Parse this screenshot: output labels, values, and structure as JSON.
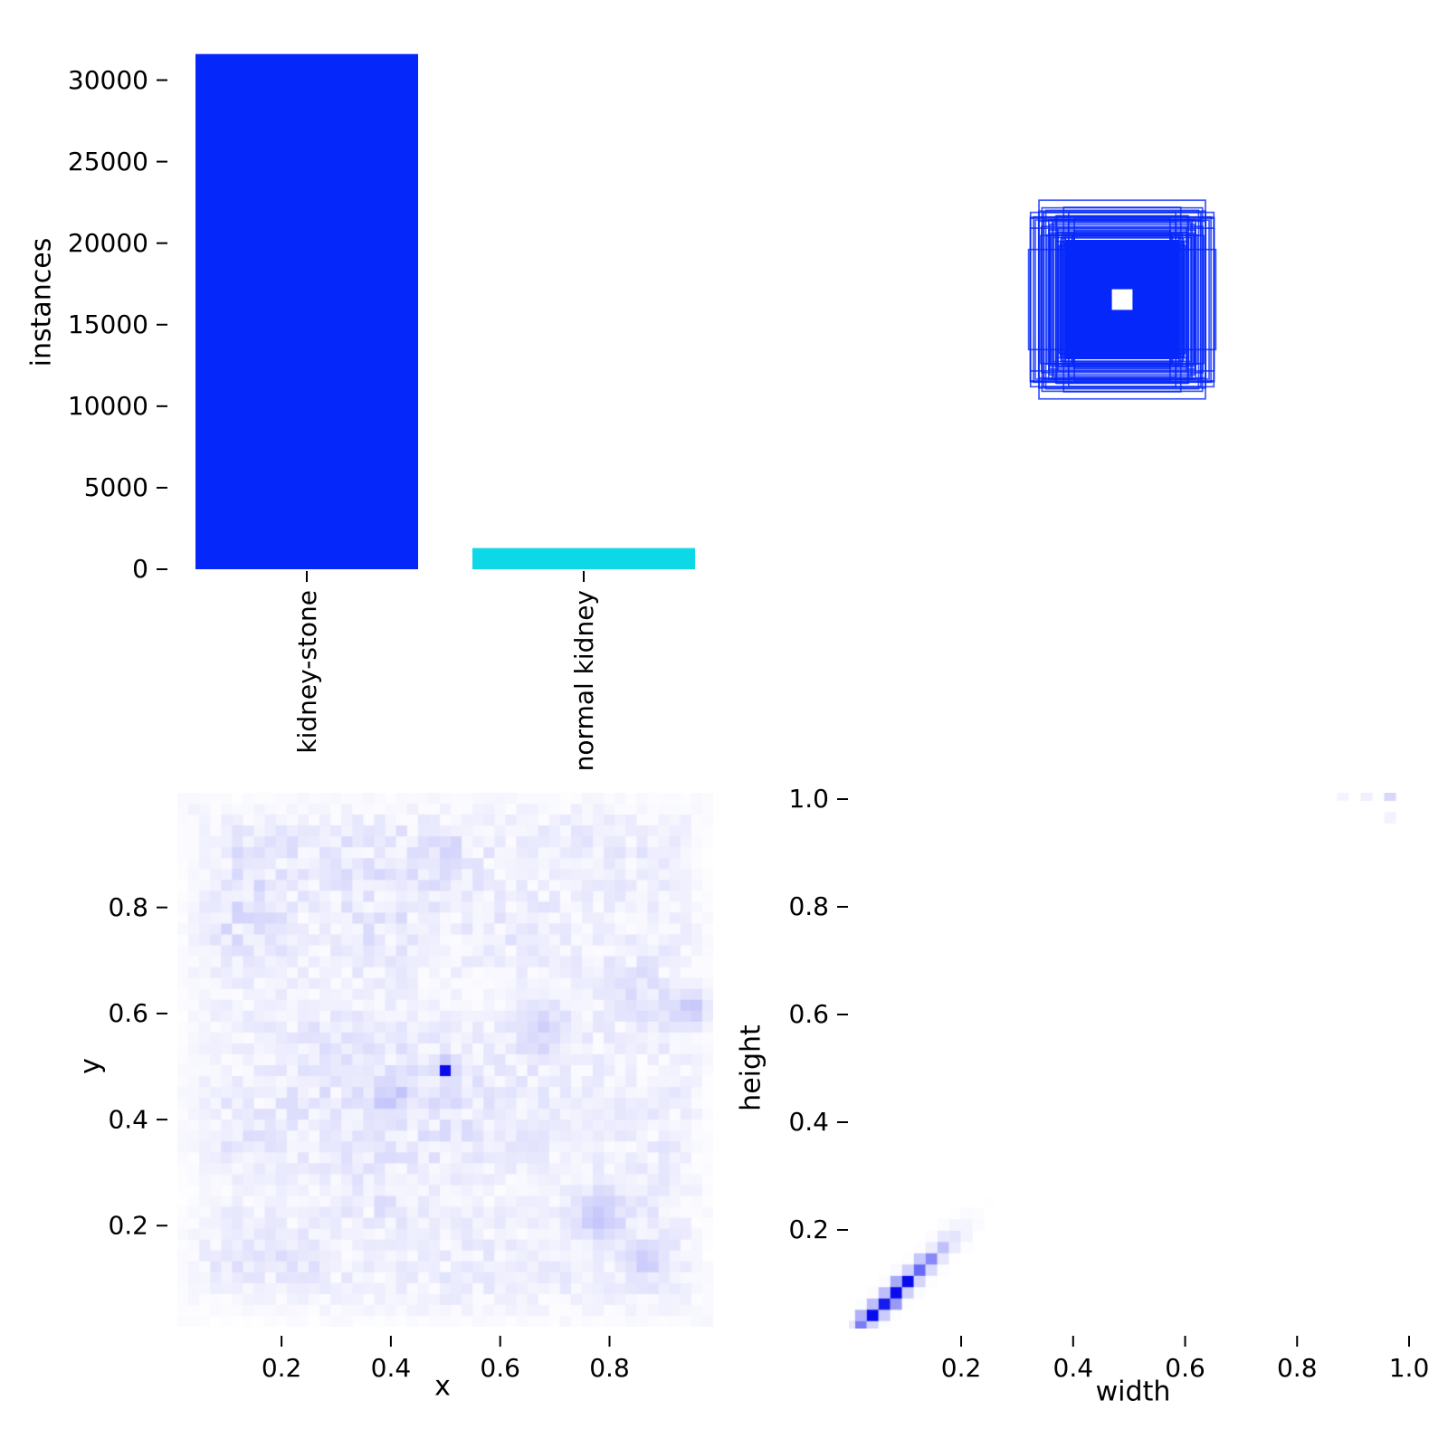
{
  "figure": {
    "background": "#ffffff",
    "text_color": "#000000",
    "title": ""
  },
  "chart_data": [
    {
      "id": "class_instances",
      "type": "bar",
      "title": "",
      "xlabel": "",
      "ylabel": "instances",
      "categories": [
        "kidney-stone",
        "normal kidney"
      ],
      "values": [
        31600,
        1300
      ],
      "bar_colors": [
        "#0527fa",
        "#0dd8e6"
      ],
      "yticks": [
        0,
        5000,
        10000,
        15000,
        20000,
        25000,
        30000
      ],
      "ylim": [
        0,
        33200
      ],
      "xtick_rotation": 90,
      "grid": false,
      "legend": "none"
    },
    {
      "id": "bbox_overlay",
      "type": "boxes",
      "description": "all dataset bounding boxes overlaid, centered at (0.5, 0.5)",
      "center_x": 0.5,
      "center_y": 0.5,
      "outline_color": "#0527fa",
      "outline_count": 58,
      "min_half_size": 0.088,
      "max_half_width": 0.17,
      "max_half_height": 0.17,
      "core": {
        "half_width": 0.105,
        "half_height": 0.11
      },
      "center_hole": {
        "half_size": 0.019,
        "color": "#ffffff"
      },
      "axes_visible": false
    },
    {
      "id": "xy_center_heatmap",
      "type": "heatmap",
      "xlabel": "x",
      "ylabel": "y",
      "xticks": [
        0.2,
        0.4,
        0.6,
        0.8
      ],
      "yticks": [
        0.2,
        0.4,
        0.6,
        0.8
      ],
      "xlim": [
        0,
        1
      ],
      "ylim": [
        0,
        1
      ],
      "bins": 49,
      "colormap": {
        "low": "#ffffff",
        "high": "#080cec"
      },
      "background_noise": {
        "min": 0.02,
        "max": 0.13
      },
      "hotspots": [
        {
          "x": 0.49,
          "y": 0.49,
          "intensity": 1.0,
          "radius_bins": 0.45
        },
        {
          "x": 0.95,
          "y": 0.61,
          "intensity": 0.2,
          "radius_bins": 1.1
        },
        {
          "x": 0.78,
          "y": 0.22,
          "intensity": 0.18,
          "radius_bins": 1.6
        },
        {
          "x": 0.4,
          "y": 0.44,
          "intensity": 0.14,
          "radius_bins": 1.4
        },
        {
          "x": 0.68,
          "y": 0.57,
          "intensity": 0.12,
          "radius_bins": 1.7
        },
        {
          "x": 0.86,
          "y": 0.13,
          "intensity": 0.1,
          "radius_bins": 1.4
        }
      ]
    },
    {
      "id": "width_height_heatmap",
      "type": "heatmap",
      "xlabel": "width",
      "ylabel": "height",
      "xticks": [
        0.2,
        0.4,
        0.6,
        0.8,
        1.0
      ],
      "yticks": [
        0.2,
        0.4,
        0.6,
        0.8,
        1.0
      ],
      "xlim": [
        0,
        1.05
      ],
      "ylim": [
        0,
        1.05
      ],
      "bin_size": 0.021,
      "colormap": {
        "low": "#ffffff",
        "high": "#080cec"
      },
      "diagonal_ridge": {
        "start": 0.025,
        "end": 0.33,
        "peak": 0.075,
        "sigma": 0.055
      },
      "outlier_cells": [
        {
          "x": 0.97,
          "y": 1.0,
          "intensity": 0.16
        },
        {
          "x": 0.93,
          "y": 1.0,
          "intensity": 0.06
        },
        {
          "x": 0.89,
          "y": 1.0,
          "intensity": 0.045
        },
        {
          "x": 0.97,
          "y": 0.96,
          "intensity": 0.05
        }
      ]
    }
  ]
}
